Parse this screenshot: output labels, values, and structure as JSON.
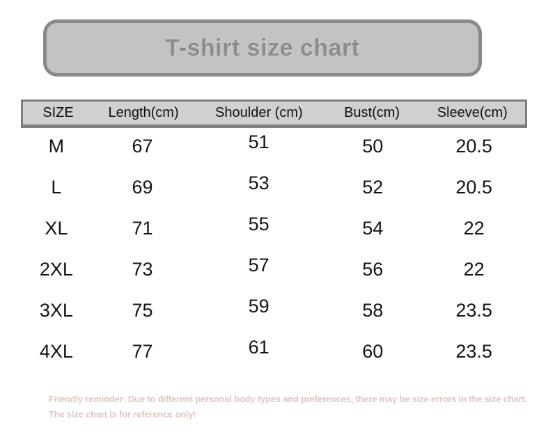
{
  "banner": {
    "title": "T-shirt size chart"
  },
  "chart_data": {
    "type": "table",
    "title": "T-shirt size chart",
    "columns": [
      "SIZE",
      "Length(cm)",
      "Shoulder (cm)",
      "Bust(cm)",
      "Sleeve(cm)"
    ],
    "rows": [
      [
        "M",
        "67",
        "51",
        "50",
        "20.5"
      ],
      [
        "L",
        "69",
        "53",
        "52",
        "20.5"
      ],
      [
        "XL",
        "71",
        "55",
        "54",
        "22"
      ],
      [
        "2XL",
        "73",
        "57",
        "56",
        "22"
      ],
      [
        "3XL",
        "75",
        "59",
        "58",
        "23.5"
      ],
      [
        "4XL",
        "77",
        "61",
        "60",
        "23.5"
      ]
    ]
  },
  "footer": {
    "note": "Friendly reminder: Due to different personal body types and preferences, there may be size errors in the size chart. The size chart is for reference only!"
  },
  "colors": {
    "banner_fill": "#c3c3c3",
    "banner_border": "#8a8a8a",
    "banner_text": "#8d8d8d",
    "header_fill": "#d0d0d0",
    "header_border": "#7e7e7e",
    "cell_text": "#141414",
    "note_text": "#ddc7c1",
    "background": "#ffffff"
  }
}
